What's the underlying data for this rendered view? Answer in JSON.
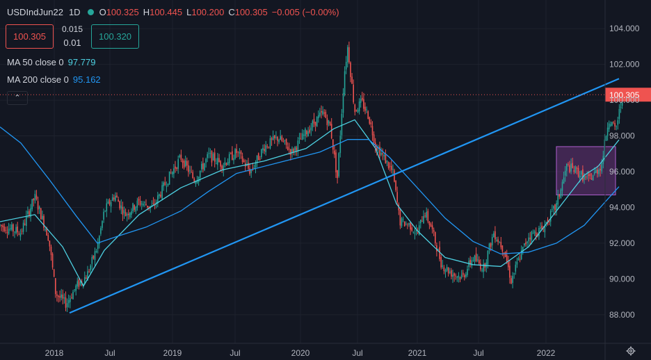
{
  "header": {
    "symbol": "USDIndJun22",
    "timeframe": "1D",
    "open_label": "O",
    "open": "100.325",
    "high_label": "H",
    "high": "100.445",
    "low_label": "L",
    "low": "100.200",
    "close_label": "C",
    "close": "100.305",
    "change": "−0.005 (−0.00%)"
  },
  "trade_boxes": {
    "sell_price": "100.305",
    "spread": "0.015",
    "spread_pct": "0.01",
    "buy_price": "100.320"
  },
  "indicators": [
    {
      "label": "MA 50 close 0",
      "value": "97.779",
      "color": "#4dd0e1"
    },
    {
      "label": "MA 200 close 0",
      "value": "95.162",
      "color": "#2196f3"
    }
  ],
  "collapse_icon": "chevron-up-icon",
  "settings_icon": "gear-icon",
  "colors": {
    "background": "#131722",
    "up": "#26a69a",
    "down": "#ef5350",
    "trendline": "#2196f3",
    "ma50": "#4dd0e1",
    "ma200": "#2196f3",
    "box_fill": "#7b3b8f",
    "box_border": "#b05fd0"
  },
  "chart_data": {
    "type": "candlestick",
    "x_ticks": [
      "2018",
      "Jul",
      "2019",
      "Jul",
      "2020",
      "Jul",
      "2021",
      "Jul",
      "2022"
    ],
    "y_ticks": [
      "88.000",
      "90.000",
      "92.000",
      "94.000",
      "96.000",
      "98.000",
      "100.000",
      "102.000",
      "104.000"
    ],
    "ylim": [
      86.4,
      105.6
    ],
    "last_price": "100.305",
    "price_path": [
      [
        0,
        93.0
      ],
      [
        0.03,
        92.6
      ],
      [
        0.05,
        94.6
      ],
      [
        0.07,
        92.3
      ],
      [
        0.08,
        89.2
      ],
      [
        0.095,
        88.6
      ],
      [
        0.11,
        89.6
      ],
      [
        0.125,
        90.2
      ],
      [
        0.14,
        91.8
      ],
      [
        0.15,
        93.8
      ],
      [
        0.165,
        94.7
      ],
      [
        0.18,
        93.6
      ],
      [
        0.2,
        94.3
      ],
      [
        0.22,
        94.0
      ],
      [
        0.24,
        95.5
      ],
      [
        0.26,
        96.8
      ],
      [
        0.28,
        95.5
      ],
      [
        0.3,
        96.9
      ],
      [
        0.32,
        96.4
      ],
      [
        0.34,
        97.1
      ],
      [
        0.36,
        96.0
      ],
      [
        0.38,
        97.4
      ],
      [
        0.4,
        97.9
      ],
      [
        0.42,
        97.1
      ],
      [
        0.44,
        98.2
      ],
      [
        0.455,
        98.9
      ],
      [
        0.465,
        99.3
      ],
      [
        0.475,
        98.5
      ],
      [
        0.485,
        95.6
      ],
      [
        0.495,
        101.5
      ],
      [
        0.5,
        103.0
      ],
      [
        0.51,
        99.4
      ],
      [
        0.52,
        99.9
      ],
      [
        0.53,
        99.1
      ],
      [
        0.54,
        97.5
      ],
      [
        0.555,
        96.6
      ],
      [
        0.565,
        95.9
      ],
      [
        0.575,
        93.2
      ],
      [
        0.59,
        93.0
      ],
      [
        0.6,
        92.5
      ],
      [
        0.61,
        93.8
      ],
      [
        0.62,
        92.9
      ],
      [
        0.635,
        90.8
      ],
      [
        0.65,
        90.3
      ],
      [
        0.665,
        90.1
      ],
      [
        0.68,
        91.2
      ],
      [
        0.695,
        90.6
      ],
      [
        0.71,
        92.6
      ],
      [
        0.725,
        91.6
      ],
      [
        0.735,
        89.9
      ],
      [
        0.745,
        91.0
      ],
      [
        0.76,
        92.4
      ],
      [
        0.78,
        92.8
      ],
      [
        0.8,
        94.1
      ],
      [
        0.815,
        96.3
      ],
      [
        0.83,
        96.0
      ],
      [
        0.845,
        95.5
      ],
      [
        0.855,
        95.9
      ],
      [
        0.865,
        96.4
      ],
      [
        0.875,
        99.0
      ],
      [
        0.885,
        98.3
      ],
      [
        0.895,
        100.2
      ]
    ],
    "trendline": [
      [
        0.1,
        88.1
      ],
      [
        0.89,
        101.2
      ]
    ],
    "range_box": [
      [
        0.8,
        0.885
      ],
      [
        94.7,
        97.4
      ]
    ],
    "series": [
      {
        "name": "MA 50 close 0",
        "points": [
          [
            0,
            93.2
          ],
          [
            0.05,
            93.6
          ],
          [
            0.09,
            91.8
          ],
          [
            0.12,
            89.6
          ],
          [
            0.15,
            91.6
          ],
          [
            0.2,
            93.6
          ],
          [
            0.26,
            95.1
          ],
          [
            0.32,
            96.1
          ],
          [
            0.38,
            96.6
          ],
          [
            0.44,
            97.3
          ],
          [
            0.48,
            98.4
          ],
          [
            0.51,
            98.9
          ],
          [
            0.54,
            97.3
          ],
          [
            0.57,
            94.2
          ],
          [
            0.6,
            92.7
          ],
          [
            0.64,
            91.2
          ],
          [
            0.68,
            90.8
          ],
          [
            0.72,
            90.7
          ],
          [
            0.76,
            91.8
          ],
          [
            0.8,
            93.8
          ],
          [
            0.84,
            95.8
          ],
          [
            0.86,
            96.3
          ],
          [
            0.89,
            97.78
          ]
        ]
      },
      {
        "name": "MA 200 close 0",
        "points": [
          [
            0,
            98.5
          ],
          [
            0.03,
            97.6
          ],
          [
            0.07,
            95.6
          ],
          [
            0.11,
            93.5
          ],
          [
            0.14,
            92.0
          ],
          [
            0.17,
            92.4
          ],
          [
            0.21,
            92.9
          ],
          [
            0.26,
            93.8
          ],
          [
            0.3,
            94.9
          ],
          [
            0.34,
            95.9
          ],
          [
            0.4,
            96.5
          ],
          [
            0.46,
            97.1
          ],
          [
            0.5,
            97.8
          ],
          [
            0.53,
            97.8
          ],
          [
            0.56,
            96.8
          ],
          [
            0.6,
            95.1
          ],
          [
            0.64,
            93.4
          ],
          [
            0.68,
            92.1
          ],
          [
            0.72,
            91.4
          ],
          [
            0.76,
            91.5
          ],
          [
            0.8,
            92.0
          ],
          [
            0.84,
            93.0
          ],
          [
            0.87,
            94.3
          ],
          [
            0.89,
            95.16
          ]
        ]
      }
    ]
  }
}
